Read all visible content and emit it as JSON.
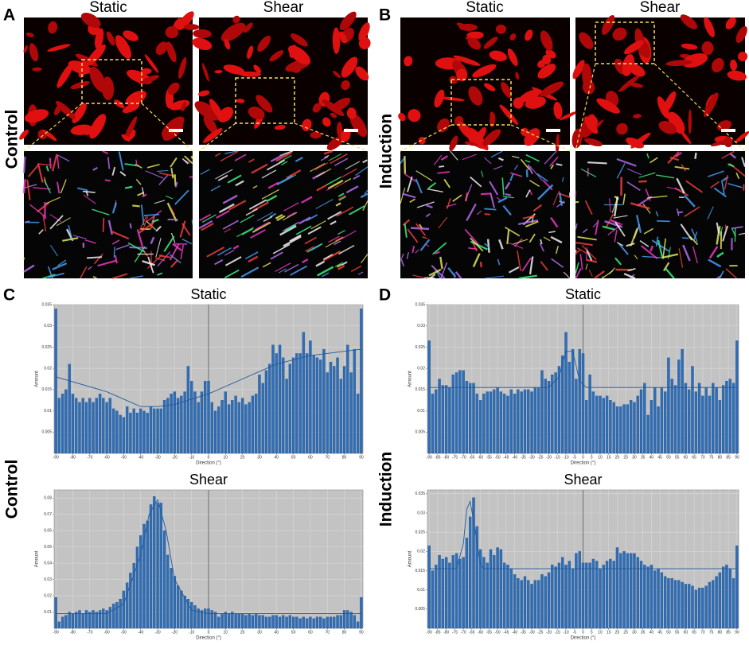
{
  "figure": {
    "image_panels": [
      {
        "letter": "A",
        "columns": [
          "Static",
          "Shear"
        ],
        "row": "Control"
      },
      {
        "letter": "B",
        "columns": [
          "Static",
          "Shear"
        ],
        "row": "Induction"
      }
    ],
    "chart_panels": [
      {
        "letter": "C",
        "row": "Control"
      },
      {
        "letter": "D",
        "row": "Induction"
      }
    ]
  },
  "chart_data": [
    {
      "type": "bar",
      "title": "Static",
      "x_label": "Direction (°)",
      "y_label": "Amount",
      "color": "#2f6db5",
      "grid": true,
      "x": [
        -90,
        -88,
        -86,
        -84,
        -82,
        -80,
        -78,
        -76,
        -74,
        -72,
        -70,
        -68,
        -66,
        -64,
        -62,
        -60,
        -58,
        -56,
        -54,
        -52,
        -50,
        -48,
        -46,
        -44,
        -42,
        -40,
        -38,
        -36,
        -34,
        -32,
        -30,
        -28,
        -26,
        -24,
        -22,
        -20,
        -18,
        -16,
        -14,
        -12,
        -10,
        -8,
        -6,
        -4,
        -2,
        0,
        2,
        4,
        6,
        8,
        10,
        12,
        14,
        16,
        18,
        20,
        22,
        24,
        26,
        28,
        30,
        32,
        34,
        36,
        38,
        40,
        42,
        44,
        46,
        48,
        50,
        52,
        54,
        56,
        58,
        60,
        62,
        64,
        66,
        68,
        70,
        72,
        74,
        76,
        78,
        80,
        82,
        84,
        86,
        88,
        90
      ],
      "values": [
        0.034,
        0.013,
        0.014,
        0.015,
        0.021,
        0.014,
        0.013,
        0.012,
        0.013,
        0.012,
        0.013,
        0.012,
        0.013,
        0.014,
        0.013,
        0.012,
        0.013,
        0.0105,
        0.01,
        0.009,
        0.0085,
        0.011,
        0.0095,
        0.0105,
        0.0095,
        0.0105,
        0.01,
        0.0095,
        0.011,
        0.0105,
        0.0105,
        0.0105,
        0.0125,
        0.013,
        0.014,
        0.0145,
        0.013,
        0.0135,
        0.0145,
        0.0205,
        0.017,
        0.0145,
        0.012,
        0.0145,
        0.017,
        0.017,
        0.012,
        0.01,
        0.011,
        0.0125,
        0.0145,
        0.0115,
        0.0125,
        0.0135,
        0.012,
        0.013,
        0.0115,
        0.012,
        0.0135,
        0.014,
        0.0185,
        0.0165,
        0.0195,
        0.021,
        0.0255,
        0.0235,
        0.0255,
        0.0225,
        0.0175,
        0.021,
        0.0225,
        0.0235,
        0.0235,
        0.0285,
        0.0235,
        0.0265,
        0.023,
        0.0225,
        0.022,
        0.0245,
        0.019,
        0.0215,
        0.0205,
        0.0225,
        0.0175,
        0.0205,
        0.0255,
        0.019,
        0.0245,
        0.014,
        0.034
      ],
      "fit": {
        "x": [
          -90,
          -60,
          -40,
          -30,
          -20,
          0,
          20,
          40,
          60,
          90
        ],
        "values": [
          0.018,
          0.0145,
          0.011,
          0.011,
          0.0115,
          0.014,
          0.0175,
          0.021,
          0.023,
          0.0245
        ]
      },
      "xlim": [
        -91,
        91
      ],
      "xticks": [
        -90,
        -80,
        -70,
        -60,
        -50,
        -40,
        -30,
        -20,
        -10,
        0,
        10,
        20,
        30,
        40,
        50,
        60,
        70,
        80,
        90
      ],
      "ylim": [
        0,
        0.035
      ],
      "yticks": [
        0.005,
        0.01,
        0.015,
        0.02,
        0.025,
        0.03,
        0.035
      ]
    },
    {
      "type": "bar",
      "title": "Shear",
      "x_label": "Direction (°)",
      "y_label": "Amount",
      "color": "#2f6db5",
      "grid": true,
      "x": [
        -90,
        -88,
        -86,
        -84,
        -82,
        -80,
        -78,
        -76,
        -74,
        -72,
        -70,
        -68,
        -66,
        -64,
        -62,
        -60,
        -58,
        -56,
        -54,
        -52,
        -50,
        -48,
        -46,
        -44,
        -42,
        -40,
        -38,
        -36,
        -34,
        -32,
        -30,
        -28,
        -26,
        -24,
        -22,
        -20,
        -18,
        -16,
        -14,
        -12,
        -10,
        -8,
        -6,
        -4,
        -2,
        0,
        2,
        4,
        6,
        8,
        10,
        12,
        14,
        16,
        18,
        20,
        22,
        24,
        26,
        28,
        30,
        32,
        34,
        36,
        38,
        40,
        42,
        44,
        46,
        48,
        50,
        52,
        54,
        56,
        58,
        60,
        62,
        64,
        66,
        68,
        70,
        72,
        74,
        76,
        78,
        80,
        82,
        84,
        86,
        88,
        90
      ],
      "values": [
        0.019,
        0.004,
        0.007,
        0.008,
        0.01,
        0.009,
        0.01,
        0.011,
        0.009,
        0.011,
        0.01,
        0.011,
        0.01,
        0.011,
        0.012,
        0.011,
        0.013,
        0.015,
        0.016,
        0.018,
        0.023,
        0.028,
        0.034,
        0.04,
        0.05,
        0.057,
        0.064,
        0.066,
        0.076,
        0.081,
        0.077,
        0.077,
        0.06,
        0.045,
        0.037,
        0.032,
        0.026,
        0.023,
        0.02,
        0.018,
        0.016,
        0.014,
        0.012,
        0.011,
        0.012,
        0.012,
        0.011,
        0.01,
        0.007,
        0.009,
        0.01,
        0.009,
        0.01,
        0.009,
        0.009,
        0.009,
        0.008,
        0.009,
        0.008,
        0.009,
        0.008,
        0.008,
        0.007,
        0.007,
        0.008,
        0.008,
        0.007,
        0.008,
        0.007,
        0.008,
        0.007,
        0.007,
        0.006,
        0.007,
        0.006,
        0.007,
        0.006,
        0.007,
        0.007,
        0.006,
        0.007,
        0.007,
        0.007,
        0.008,
        0.008,
        0.011,
        0.011,
        0.01,
        0.008,
        0.004,
        0.019
      ],
      "fit": {
        "x": [
          -90,
          -60,
          -50,
          -40,
          -35,
          -30,
          -25,
          -20,
          -10,
          0,
          90
        ],
        "values": [
          0.009,
          0.009,
          0.015,
          0.045,
          0.07,
          0.079,
          0.06,
          0.03,
          0.011,
          0.009,
          0.009
        ]
      },
      "xlim": [
        -91,
        91
      ],
      "xticks": [
        -90,
        -80,
        -70,
        -60,
        -50,
        -40,
        -30,
        -20,
        -10,
        0,
        10,
        20,
        30,
        40,
        50,
        60,
        70,
        80,
        90
      ],
      "ylim": [
        0,
        0.085
      ],
      "yticks": [
        0.01,
        0.02,
        0.03,
        0.04,
        0.05,
        0.06,
        0.07,
        0.08
      ]
    },
    {
      "type": "bar",
      "title": "Static",
      "x_label": "Direction (°)",
      "y_label": "Amount",
      "color": "#2f6db5",
      "grid": true,
      "x": [
        -90,
        -88,
        -86,
        -84,
        -82,
        -80,
        -78,
        -76,
        -74,
        -72,
        -70,
        -68,
        -66,
        -64,
        -62,
        -60,
        -58,
        -56,
        -54,
        -52,
        -50,
        -48,
        -46,
        -44,
        -42,
        -40,
        -38,
        -36,
        -34,
        -32,
        -30,
        -28,
        -26,
        -24,
        -22,
        -20,
        -18,
        -16,
        -14,
        -12,
        -10,
        -8,
        -6,
        -4,
        -2,
        0,
        2,
        4,
        6,
        8,
        10,
        12,
        14,
        16,
        18,
        20,
        22,
        24,
        26,
        28,
        30,
        32,
        34,
        36,
        38,
        40,
        42,
        44,
        46,
        48,
        50,
        52,
        54,
        56,
        58,
        60,
        62,
        64,
        66,
        68,
        70,
        72,
        74,
        76,
        78,
        80,
        82,
        84,
        86,
        88,
        90
      ],
      "values": [
        0.0265,
        0.014,
        0.015,
        0.0175,
        0.016,
        0.016,
        0.0155,
        0.0185,
        0.019,
        0.0195,
        0.0195,
        0.017,
        0.0165,
        0.0165,
        0.014,
        0.0125,
        0.014,
        0.0145,
        0.0145,
        0.015,
        0.0155,
        0.0145,
        0.014,
        0.0135,
        0.015,
        0.014,
        0.015,
        0.0145,
        0.015,
        0.015,
        0.0145,
        0.0155,
        0.0155,
        0.0195,
        0.0175,
        0.017,
        0.0185,
        0.019,
        0.0205,
        0.023,
        0.0285,
        0.0215,
        0.0245,
        0.0175,
        0.0245,
        0.0235,
        0.0125,
        0.0185,
        0.0145,
        0.0135,
        0.0135,
        0.013,
        0.0135,
        0.0125,
        0.012,
        0.011,
        0.011,
        0.0115,
        0.0115,
        0.0125,
        0.012,
        0.0135,
        0.015,
        0.0165,
        0.009,
        0.0125,
        0.0155,
        0.011,
        0.0155,
        0.0145,
        0.0225,
        0.0175,
        0.016,
        0.022,
        0.0245,
        0.0165,
        0.015,
        0.0205,
        0.0145,
        0.0165,
        0.0135,
        0.0155,
        0.0135,
        0.0165,
        0.0155,
        0.0125,
        0.016,
        0.017,
        0.0175,
        0.0165,
        0.0265
      ],
      "fit": {
        "x": [
          -90,
          -20,
          -14,
          -10,
          -6,
          -2,
          2,
          90
        ],
        "values": [
          0.0155,
          0.0155,
          0.018,
          0.024,
          0.024,
          0.017,
          0.0155,
          0.0155
        ]
      },
      "xlim": [
        -91,
        91
      ],
      "xticks": [
        -90,
        -85,
        -80,
        -75,
        -70,
        -65,
        -60,
        -55,
        -50,
        -45,
        -40,
        -35,
        -30,
        -25,
        -20,
        -15,
        -10,
        -5,
        0,
        5,
        10,
        15,
        20,
        25,
        30,
        35,
        40,
        45,
        50,
        55,
        60,
        65,
        70,
        75,
        80,
        85,
        90
      ],
      "ylim": [
        0,
        0.035
      ],
      "yticks": [
        0.005,
        0.01,
        0.015,
        0.02,
        0.025,
        0.03,
        0.035
      ]
    },
    {
      "type": "bar",
      "title": "Shear",
      "x_label": "Direction (°)",
      "y_label": "Amount",
      "color": "#2f6db5",
      "grid": true,
      "x": [
        -90,
        -88,
        -86,
        -84,
        -82,
        -80,
        -78,
        -76,
        -74,
        -72,
        -70,
        -68,
        -66,
        -64,
        -62,
        -60,
        -58,
        -56,
        -54,
        -52,
        -50,
        -48,
        -46,
        -44,
        -42,
        -40,
        -38,
        -36,
        -34,
        -32,
        -30,
        -28,
        -26,
        -24,
        -22,
        -20,
        -18,
        -16,
        -14,
        -12,
        -10,
        -8,
        -6,
        -4,
        -2,
        0,
        2,
        4,
        6,
        8,
        10,
        12,
        14,
        16,
        18,
        20,
        22,
        24,
        26,
        28,
        30,
        32,
        34,
        36,
        38,
        40,
        42,
        44,
        46,
        48,
        50,
        52,
        54,
        56,
        58,
        60,
        62,
        64,
        66,
        68,
        70,
        72,
        74,
        76,
        78,
        80,
        82,
        84,
        86,
        88,
        90
      ],
      "values": [
        0.0215,
        0.015,
        0.0165,
        0.019,
        0.018,
        0.0185,
        0.017,
        0.019,
        0.0195,
        0.018,
        0.0185,
        0.0235,
        0.029,
        0.034,
        0.0265,
        0.0205,
        0.0185,
        0.017,
        0.0205,
        0.019,
        0.021,
        0.0205,
        0.017,
        0.0165,
        0.0155,
        0.014,
        0.013,
        0.0125,
        0.0135,
        0.0125,
        0.0115,
        0.0125,
        0.0125,
        0.014,
        0.0135,
        0.0145,
        0.0165,
        0.016,
        0.017,
        0.0185,
        0.0165,
        0.0175,
        0.0155,
        0.0195,
        0.02,
        0.017,
        0.017,
        0.017,
        0.018,
        0.0175,
        0.0155,
        0.0165,
        0.0175,
        0.018,
        0.0175,
        0.021,
        0.0195,
        0.02,
        0.0195,
        0.0195,
        0.0195,
        0.0185,
        0.0175,
        0.0165,
        0.016,
        0.0165,
        0.015,
        0.0155,
        0.0145,
        0.0135,
        0.013,
        0.013,
        0.0125,
        0.0125,
        0.012,
        0.0115,
        0.0115,
        0.011,
        0.01,
        0.0105,
        0.0105,
        0.011,
        0.012,
        0.0125,
        0.0135,
        0.0145,
        0.016,
        0.0165,
        0.0155,
        0.013,
        0.0215
      ],
      "fit": {
        "x": [
          -90,
          -74,
          -70,
          -68,
          -66,
          -64,
          -60,
          -58,
          90
        ],
        "values": [
          0.0155,
          0.0155,
          0.022,
          0.031,
          0.033,
          0.028,
          0.0165,
          0.0155,
          0.0155
        ]
      },
      "xlim": [
        -91,
        91
      ],
      "xticks": [
        -90,
        -85,
        -80,
        -75,
        -70,
        -65,
        -60,
        -55,
        -50,
        -45,
        -40,
        -35,
        -30,
        -25,
        -20,
        -15,
        -10,
        -5,
        0,
        5,
        10,
        15,
        20,
        25,
        30,
        35,
        40,
        45,
        50,
        55,
        60,
        65,
        70,
        75,
        80,
        85,
        90
      ],
      "ylim": [
        0,
        0.036
      ],
      "yticks": [
        0.005,
        0.01,
        0.015,
        0.02,
        0.025,
        0.03,
        0.035
      ]
    }
  ]
}
